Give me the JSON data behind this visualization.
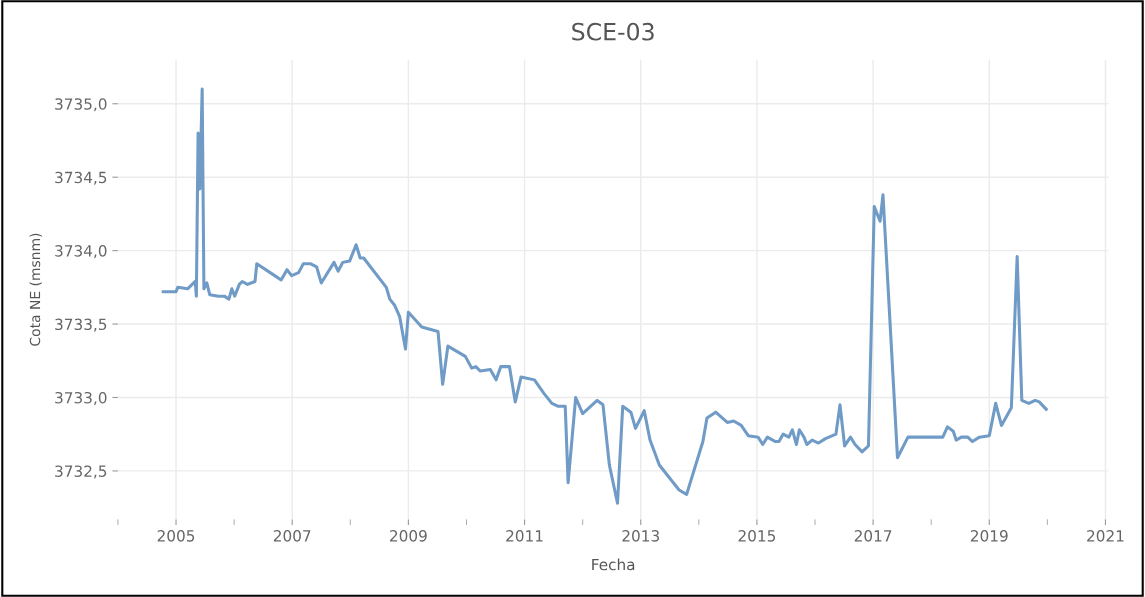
{
  "chart_data": {
    "type": "line",
    "title": "SCE-03",
    "xlabel": "Fecha",
    "ylabel": "Cota NE (msnm)",
    "series": [
      {
        "color": "#6f9bc6",
        "x": [
          2004.78,
          2005.0,
          2005.03,
          2005.2,
          2005.33,
          2005.35,
          2005.38,
          2005.41,
          2005.45,
          2005.48,
          2005.53,
          2005.58,
          2005.73,
          2005.83,
          2005.91,
          2005.96,
          2006.01,
          2006.09,
          2006.14,
          2006.23,
          2006.36,
          2006.39,
          2006.66,
          2006.81,
          2006.91,
          2006.99,
          2007.11,
          2007.19,
          2007.32,
          2007.42,
          2007.5,
          2007.72,
          2007.79,
          2007.87,
          2007.99,
          2008.1,
          2008.17,
          2008.23,
          2008.62,
          2008.68,
          2008.76,
          2008.85,
          2008.95,
          2009.0,
          2009.23,
          2009.51,
          2009.59,
          2009.68,
          2009.98,
          2010.09,
          2010.16,
          2010.24,
          2010.41,
          2010.51,
          2010.59,
          2010.74,
          2010.84,
          2010.94,
          2011.17,
          2011.33,
          2011.47,
          2011.58,
          2011.7,
          2011.75,
          2011.88,
          2012.0,
          2012.25,
          2012.35,
          2012.46,
          2012.6,
          2012.69,
          2012.83,
          2012.91,
          2013.06,
          2013.16,
          2013.32,
          2013.66,
          2013.79,
          2014.07,
          2014.14,
          2014.29,
          2014.49,
          2014.6,
          2014.73,
          2014.85,
          2015.02,
          2015.1,
          2015.18,
          2015.32,
          2015.38,
          2015.45,
          2015.55,
          2015.61,
          2015.68,
          2015.73,
          2015.81,
          2015.86,
          2015.95,
          2016.06,
          2016.18,
          2016.36,
          2016.43,
          2016.51,
          2016.61,
          2016.69,
          2016.81,
          2016.92,
          2017.02,
          2017.12,
          2017.17,
          2017.42,
          2017.6,
          2018.2,
          2018.28,
          2018.38,
          2018.43,
          2018.52,
          2018.63,
          2018.71,
          2018.83,
          2019.0,
          2019.11,
          2019.21,
          2019.38,
          2019.48,
          2019.56,
          2019.68,
          2019.79,
          2019.86,
          2019.98
        ],
        "values": [
          3733.72,
          3733.72,
          3733.75,
          3733.74,
          3733.79,
          3733.69,
          3734.8,
          3734.42,
          3735.1,
          3733.74,
          3733.78,
          3733.7,
          3733.69,
          3733.69,
          3733.67,
          3733.74,
          3733.69,
          3733.77,
          3733.79,
          3733.77,
          3733.79,
          3733.91,
          3733.84,
          3733.8,
          3733.87,
          3733.83,
          3733.85,
          3733.91,
          3733.91,
          3733.89,
          3733.78,
          3733.92,
          3733.86,
          3733.92,
          3733.93,
          3734.04,
          3733.95,
          3733.95,
          3733.75,
          3733.67,
          3733.63,
          3733.55,
          3733.33,
          3733.58,
          3733.48,
          3733.45,
          3733.09,
          3733.35,
          3733.28,
          3733.2,
          3733.21,
          3733.18,
          3733.19,
          3733.12,
          3733.21,
          3733.21,
          3732.97,
          3733.14,
          3733.12,
          3733.03,
          3732.96,
          3732.94,
          3732.94,
          3732.42,
          3733.0,
          3732.89,
          3732.98,
          3732.95,
          3732.54,
          3732.28,
          3732.94,
          3732.9,
          3732.79,
          3732.91,
          3732.71,
          3732.54,
          3732.37,
          3732.34,
          3732.7,
          3732.86,
          3732.9,
          3732.83,
          3732.84,
          3732.81,
          3732.74,
          3732.73,
          3732.68,
          3732.73,
          3732.7,
          3732.7,
          3732.75,
          3732.73,
          3732.78,
          3732.68,
          3732.78,
          3732.73,
          3732.68,
          3732.71,
          3732.69,
          3732.72,
          3732.75,
          3732.95,
          3732.67,
          3732.73,
          3732.68,
          3732.63,
          3732.67,
          3734.3,
          3734.2,
          3734.38,
          3732.59,
          3732.73,
          3732.73,
          3732.8,
          3732.77,
          3732.71,
          3732.73,
          3732.73,
          3732.7,
          3732.73,
          3732.74,
          3732.96,
          3732.81,
          3732.93,
          3733.96,
          3732.98,
          3732.96,
          3732.98,
          3732.97,
          3732.92
        ]
      }
    ],
    "xlim": [
      2004,
      2021.05
    ],
    "ylim": [
      3732.17,
      3735.3
    ],
    "xticks": [
      {
        "value": 2004,
        "label": null
      },
      2005,
      {
        "value": 2006,
        "label": null
      },
      2007,
      {
        "value": 2008,
        "label": null
      },
      2009,
      {
        "value": 2010,
        "label": null
      },
      2011,
      {
        "value": 2012,
        "label": null
      },
      2013,
      {
        "value": 2014,
        "label": null
      },
      2015,
      {
        "value": 2016,
        "label": null
      },
      2017,
      {
        "value": 2018,
        "label": null
      },
      2019,
      {
        "value": 2020,
        "label": null
      },
      2021
    ],
    "yticks": [
      {
        "value": 3732.5,
        "label": "3732,5"
      },
      {
        "value": 3733.0,
        "label": "3733,0"
      },
      {
        "value": 3733.5,
        "label": "3733,5"
      },
      {
        "value": 3734.0,
        "label": "3734,0"
      },
      {
        "value": 3734.5,
        "label": "3734,5"
      },
      {
        "value": 3735.0,
        "label": "3735,0"
      }
    ],
    "grid": true,
    "line_style": "solid"
  }
}
